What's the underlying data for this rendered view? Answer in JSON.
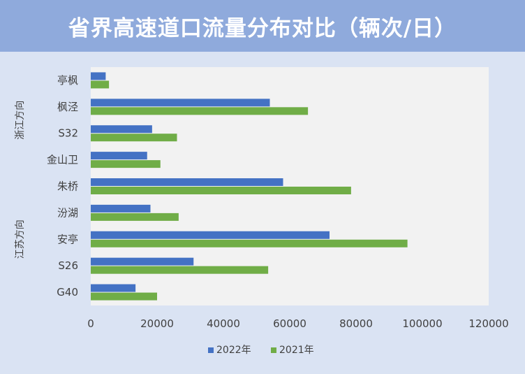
{
  "title": "省界高速道口流量分布对比（辆次/日）",
  "chart_data": {
    "type": "bar",
    "orientation": "horizontal",
    "categories": [
      "亭枫",
      "枫泾",
      "S32",
      "金山卫",
      "朱桥",
      "汾湖",
      "安亭",
      "S26",
      "G40"
    ],
    "groups": [
      {
        "label": "浙江方向",
        "categories": [
          "亭枫",
          "枫泾",
          "S32",
          "金山卫"
        ]
      },
      {
        "label": "江苏方向",
        "categories": [
          "朱桥",
          "汾湖",
          "安亭",
          "S26",
          "G40"
        ]
      }
    ],
    "series": [
      {
        "name": "2022年",
        "color": "#4472c4",
        "values": [
          4500,
          54000,
          18500,
          17000,
          58000,
          18000,
          72000,
          31000,
          13500
        ]
      },
      {
        "name": "2021年",
        "color": "#70ad47",
        "values": [
          5500,
          65500,
          26000,
          21000,
          78500,
          26500,
          95500,
          53500,
          20000
        ]
      }
    ],
    "xlim": [
      0,
      120000
    ],
    "xticks": [
      "0",
      "20000",
      "40000",
      "60000",
      "80000",
      "100000",
      "120000"
    ],
    "grid": false,
    "legend": "bottom",
    "plot_background": "#f2f2f2"
  }
}
